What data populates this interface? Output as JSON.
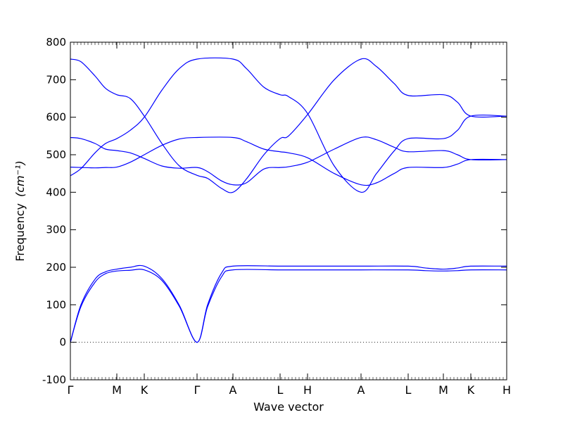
{
  "chart_data": {
    "type": "line",
    "xlabel": "Wave vector",
    "ylabel": "Frequency",
    "ylabel_unit": "(cm⁻¹)",
    "ylim": [
      -100,
      800
    ],
    "yticks": [
      -100,
      0,
      100,
      200,
      300,
      400,
      500,
      600,
      700,
      800
    ],
    "zero_line": true,
    "color": "#0000ff",
    "x_range": [
      0,
      12.4
    ],
    "high_symmetry_points": [
      {
        "label": "Γ",
        "x": 0.0
      },
      {
        "label": "M",
        "x": 1.32
      },
      {
        "label": "K",
        "x": 2.1
      },
      {
        "label": "Γ",
        "x": 3.6
      },
      {
        "label": "A",
        "x": 4.62
      },
      {
        "label": "L",
        "x": 5.96
      },
      {
        "label": "H",
        "x": 6.74
      },
      {
        "label": "A",
        "x": 8.26
      },
      {
        "label": "L",
        "x": 9.6
      },
      {
        "label": "M",
        "x": 10.6
      },
      {
        "label": "K",
        "x": 11.38
      },
      {
        "label": "H",
        "x": 12.4
      }
    ],
    "series": [
      {
        "points": [
          [
            0.0,
            0
          ],
          [
            0.3,
            95
          ],
          [
            0.7,
            160
          ],
          [
            1.0,
            183
          ],
          [
            1.32,
            190
          ],
          [
            1.7,
            192
          ],
          [
            2.1,
            193
          ],
          [
            2.6,
            165
          ],
          [
            3.1,
            95
          ],
          [
            3.6,
            0
          ],
          [
            3.9,
            95
          ],
          [
            4.3,
            175
          ],
          [
            4.62,
            193
          ],
          [
            5.96,
            193
          ],
          [
            6.74,
            193
          ],
          [
            8.26,
            193
          ],
          [
            9.6,
            193
          ],
          [
            10.1,
            191
          ],
          [
            10.6,
            190
          ],
          [
            11.0,
            191
          ],
          [
            11.38,
            193
          ],
          [
            12.4,
            193
          ]
        ]
      },
      {
        "points": [
          [
            0.0,
            0
          ],
          [
            0.3,
            100
          ],
          [
            0.7,
            168
          ],
          [
            1.0,
            188
          ],
          [
            1.32,
            195
          ],
          [
            1.7,
            200
          ],
          [
            2.1,
            203
          ],
          [
            2.6,
            170
          ],
          [
            3.1,
            98
          ],
          [
            3.6,
            0
          ],
          [
            3.9,
            100
          ],
          [
            4.3,
            185
          ],
          [
            4.62,
            203
          ],
          [
            5.96,
            203
          ],
          [
            6.74,
            203
          ],
          [
            8.26,
            203
          ],
          [
            9.6,
            203
          ],
          [
            10.1,
            198
          ],
          [
            10.6,
            195
          ],
          [
            11.0,
            198
          ],
          [
            11.38,
            203
          ],
          [
            12.4,
            203
          ]
        ]
      },
      {
        "points": [
          [
            0.0,
            444
          ],
          [
            0.3,
            463
          ],
          [
            0.7,
            505
          ],
          [
            1.0,
            530
          ],
          [
            1.32,
            543
          ],
          [
            1.7,
            565
          ],
          [
            2.1,
            600
          ],
          [
            2.6,
            672
          ],
          [
            3.1,
            730
          ],
          [
            3.6,
            755
          ],
          [
            4.62,
            755
          ],
          [
            5.0,
            730
          ],
          [
            5.5,
            680
          ],
          [
            5.96,
            660
          ],
          [
            6.2,
            655
          ],
          [
            6.74,
            610
          ],
          [
            7.5,
            470
          ],
          [
            8.26,
            400
          ],
          [
            8.7,
            450
          ],
          [
            9.2,
            510
          ],
          [
            9.6,
            543
          ],
          [
            10.6,
            543
          ],
          [
            11.0,
            565
          ],
          [
            11.38,
            603
          ],
          [
            12.4,
            603
          ]
        ]
      },
      {
        "points": [
          [
            0.0,
            755
          ],
          [
            0.3,
            748
          ],
          [
            0.7,
            710
          ],
          [
            1.0,
            677
          ],
          [
            1.32,
            660
          ],
          [
            1.7,
            650
          ],
          [
            2.1,
            603
          ],
          [
            2.6,
            530
          ],
          [
            3.1,
            470
          ],
          [
            3.6,
            445
          ],
          [
            3.9,
            437
          ],
          [
            4.3,
            410
          ],
          [
            4.62,
            400
          ],
          [
            5.0,
            435
          ],
          [
            5.5,
            500
          ],
          [
            5.96,
            543
          ],
          [
            6.2,
            550
          ],
          [
            6.74,
            607
          ],
          [
            7.5,
            700
          ],
          [
            8.26,
            755
          ],
          [
            8.7,
            735
          ],
          [
            9.2,
            690
          ],
          [
            9.6,
            658
          ],
          [
            10.6,
            660
          ],
          [
            11.0,
            640
          ],
          [
            11.38,
            603
          ],
          [
            12.4,
            603
          ]
        ]
      },
      {
        "points": [
          [
            0.0,
            546
          ],
          [
            0.3,
            543
          ],
          [
            0.7,
            530
          ],
          [
            1.0,
            515
          ],
          [
            1.32,
            511
          ],
          [
            1.7,
            505
          ],
          [
            2.1,
            490
          ],
          [
            2.6,
            470
          ],
          [
            3.1,
            464
          ],
          [
            3.6,
            466
          ],
          [
            3.9,
            455
          ],
          [
            4.3,
            430
          ],
          [
            4.62,
            420
          ],
          [
            5.0,
            425
          ],
          [
            5.5,
            462
          ],
          [
            5.96,
            466
          ],
          [
            6.2,
            468
          ],
          [
            6.74,
            480
          ],
          [
            7.5,
            515
          ],
          [
            8.26,
            546
          ],
          [
            8.7,
            540
          ],
          [
            9.2,
            520
          ],
          [
            9.6,
            508
          ],
          [
            10.6,
            511
          ],
          [
            11.0,
            500
          ],
          [
            11.38,
            487
          ],
          [
            12.4,
            487
          ]
        ]
      },
      {
        "points": [
          [
            0.0,
            467
          ],
          [
            0.3,
            466
          ],
          [
            0.7,
            465
          ],
          [
            1.0,
            466
          ],
          [
            1.32,
            467
          ],
          [
            1.7,
            480
          ],
          [
            2.1,
            500
          ],
          [
            2.6,
            525
          ],
          [
            3.1,
            542
          ],
          [
            3.6,
            546
          ],
          [
            4.62,
            546
          ],
          [
            5.0,
            535
          ],
          [
            5.5,
            515
          ],
          [
            5.96,
            508
          ],
          [
            6.2,
            505
          ],
          [
            6.74,
            492
          ],
          [
            7.5,
            450
          ],
          [
            8.26,
            420
          ],
          [
            8.7,
            425
          ],
          [
            9.2,
            450
          ],
          [
            9.6,
            466
          ],
          [
            10.6,
            466
          ],
          [
            11.0,
            475
          ],
          [
            11.38,
            487
          ],
          [
            12.4,
            487
          ]
        ]
      }
    ]
  }
}
